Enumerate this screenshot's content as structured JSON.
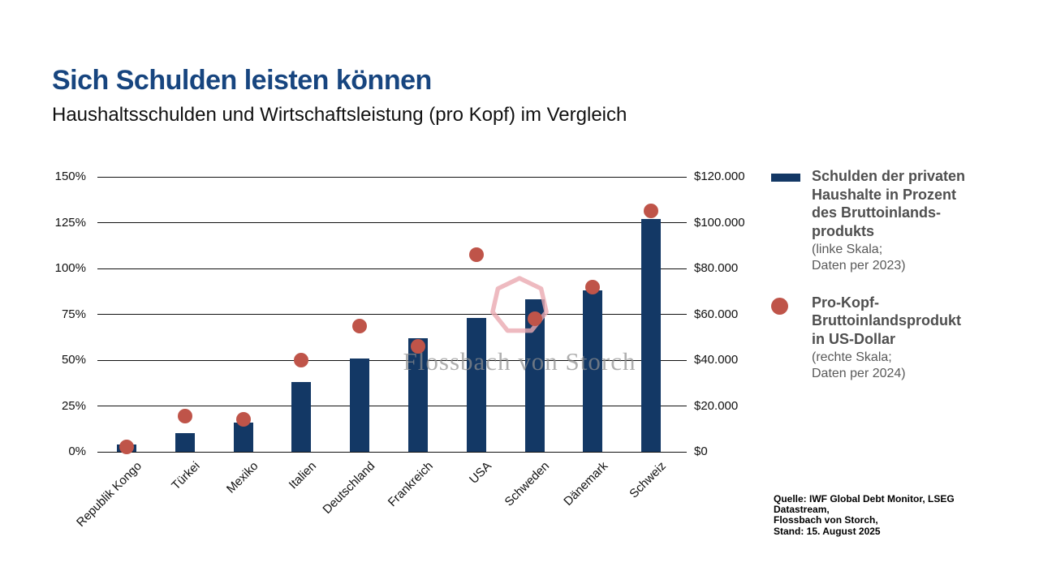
{
  "slide": {
    "title": "Sich Schulden leisten können",
    "subtitle": "Haushaltsschulden und Wirtschaftsleistung (pro Kopf) im Vergleich",
    "watermark_text": "Flossbach von Storch",
    "watermark_logo": "flossbach-heptagon-ring-logo",
    "source": "Quelle: IWF Global Debt Monitor, LSEG Datastream,\nFlossbach von Storch,\nStand: 15. August 2025"
  },
  "legend": {
    "items": [
      {
        "marker": "bar",
        "label": "Schulden der privaten\nHaushalte in Prozent\ndes Bruttoinlands-\nprodukts",
        "note": "(linke Skala;\nDaten per 2023)"
      },
      {
        "marker": "dot",
        "label": "Pro-Kopf-\nBruttoinlandsprodukt\nin US-Dollar",
        "note": "(rechte Skala;\nDaten per 2024)"
      }
    ]
  },
  "colors": {
    "title_blue": "#17457f",
    "bar_navy": "#133865",
    "dot_red": "#bf5449",
    "grid_black": "#111111",
    "watermark_pink": "#eaa9b0",
    "watermark_gray": "#8f8f8f",
    "legend_gray": "#4f4f4f"
  },
  "chart_data": {
    "type": "bar",
    "subtype": "dual-axis bar + scatter dots",
    "title": "Haushaltsschulden und Wirtschaftsleistung (pro Kopf) im Vergleich",
    "categories": [
      "Republik Kongo",
      "Türkei",
      "Mexiko",
      "Italien",
      "Deutschland",
      "Frankreich",
      "USA",
      "Schweden",
      "Dänemark",
      "Schweiz"
    ],
    "series": [
      {
        "name": "Schulden der privaten Haushalte in Prozent des Bruttoinlandsprodukts",
        "type": "bar",
        "axis": "left",
        "unit": "% des BIP",
        "data_year": "2023",
        "values": [
          4,
          10,
          16,
          38,
          51,
          62,
          73,
          83,
          88,
          127
        ]
      },
      {
        "name": "Pro-Kopf-Bruttoinlandsprodukt in US-Dollar",
        "type": "scatter",
        "axis": "right",
        "unit": "USD",
        "data_year": "2024",
        "values": [
          2000,
          15500,
          14000,
          40000,
          55000,
          46000,
          86000,
          58000,
          72000,
          105000
        ]
      }
    ],
    "left_axis": {
      "min": 0,
      "max": 150,
      "step": 25,
      "ticks": [
        "0%",
        "25%",
        "50%",
        "75%",
        "100%",
        "125%",
        "150%"
      ]
    },
    "right_axis": {
      "min": 0,
      "max": 120000,
      "step": 20000,
      "ticks": [
        "$0",
        "$20.000",
        "$40.000",
        "$60.000",
        "$80.000",
        "$100.000",
        "$120.000"
      ]
    },
    "grid": true,
    "legend_position": "right"
  }
}
